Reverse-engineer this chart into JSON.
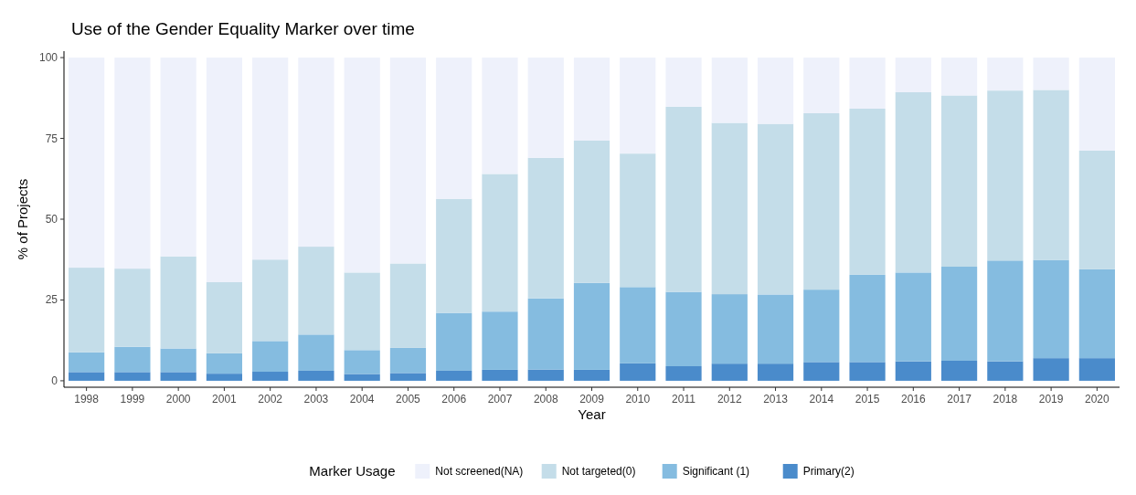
{
  "chart_data": {
    "type": "bar",
    "stacked": true,
    "title": "Use of the Gender Equality Marker over time",
    "xlabel": "Year",
    "ylabel": "% of Projects",
    "legend_title": "Marker Usage",
    "legend": "bottom",
    "grid": false,
    "categories": [
      "1998",
      "1999",
      "2000",
      "2001",
      "2002",
      "2003",
      "2004",
      "2005",
      "2006",
      "2007",
      "2008",
      "2009",
      "2010",
      "2011",
      "2012",
      "2013",
      "2014",
      "2015",
      "2016",
      "2017",
      "2018",
      "2019",
      "2020"
    ],
    "ylim": [
      -2,
      102
    ],
    "yticks": [
      0,
      25,
      50,
      75,
      100
    ],
    "series": [
      {
        "name": "Primary(2)",
        "color": "#4a8bcb",
        "values": [
          2.7,
          2.7,
          2.7,
          2.2,
          2.8,
          3.1,
          2.1,
          2.4,
          3.1,
          3.4,
          3.5,
          3.4,
          5.4,
          4.5,
          5.3,
          5.3,
          5.8,
          5.8,
          6,
          6.2,
          6,
          7,
          7
        ]
      },
      {
        "name": "Significant (1)",
        "color": "#85bce0",
        "values": [
          6.1,
          7.8,
          7.3,
          6.3,
          9.5,
          11.2,
          7.4,
          7.8,
          17.9,
          18,
          22,
          26.9,
          23.6,
          23,
          21.5,
          21.4,
          22.4,
          27,
          27.5,
          29.1,
          31.2,
          30.4,
          27.5
        ]
      },
      {
        "name": "Not targeted(0)",
        "color": "#c4dde9",
        "values": [
          26.2,
          24.2,
          28.5,
          22,
          25.2,
          27.2,
          24,
          26.1,
          35.3,
          42.6,
          43.5,
          44,
          41.3,
          57.3,
          53,
          52.8,
          54.6,
          51.4,
          55.8,
          53,
          52.6,
          52.6,
          36.7
        ]
      },
      {
        "name": "Not screened(NA)",
        "color": "#eef1fb",
        "values": [
          65,
          65.3,
          61.5,
          69.5,
          62.5,
          58.5,
          66.5,
          63.7,
          43.7,
          36,
          31,
          25.7,
          29.7,
          15.2,
          20.2,
          20.5,
          17.2,
          15.8,
          10.7,
          11.7,
          10.2,
          10,
          28.8
        ]
      }
    ]
  }
}
